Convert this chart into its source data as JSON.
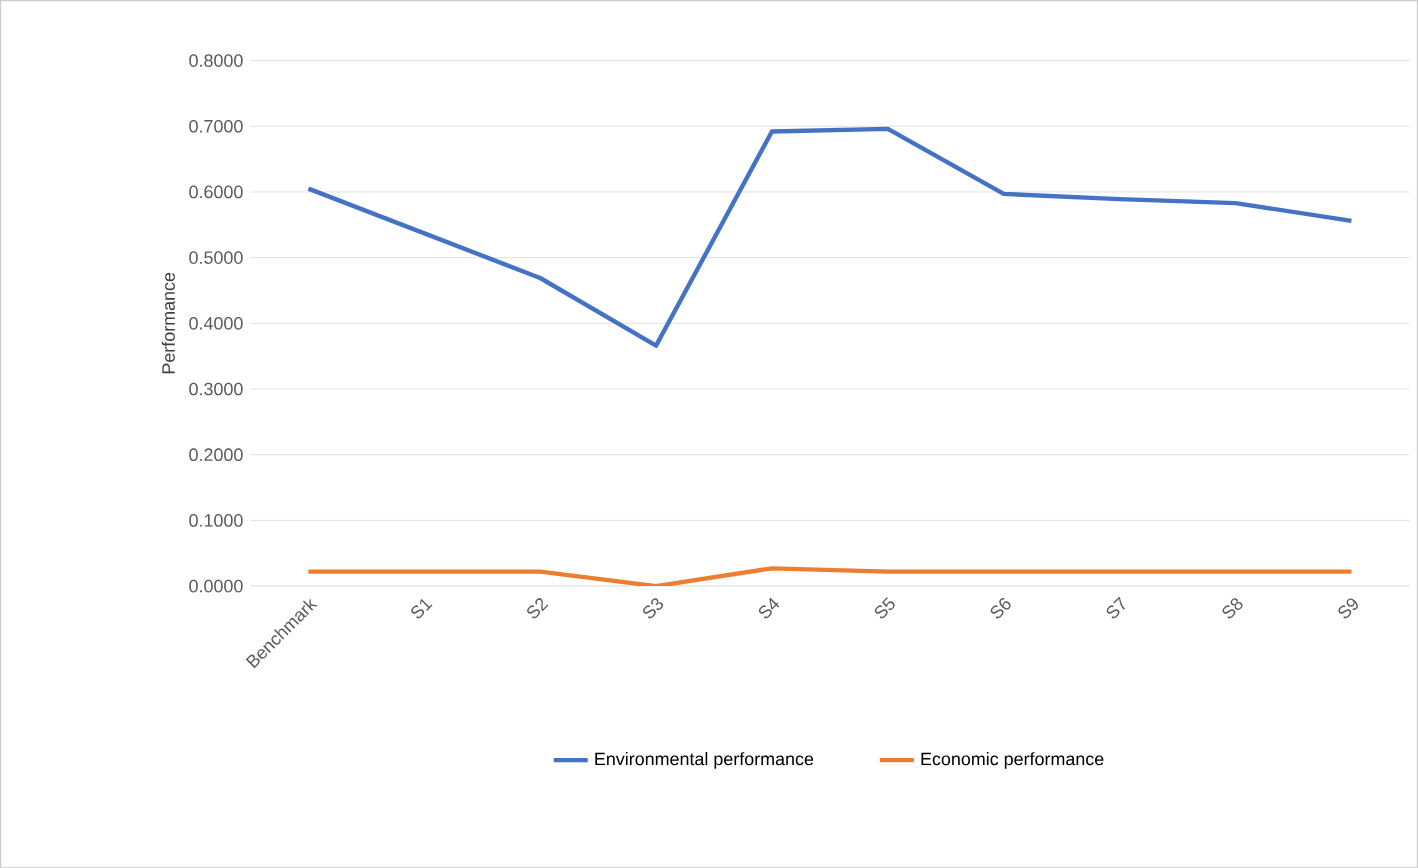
{
  "chart_data": {
    "type": "line",
    "ylabel": "Performance",
    "categories": [
      "Benchmark",
      "S1",
      "S2",
      "S3",
      "S4",
      "S5",
      "S6",
      "S7",
      "S8",
      "S9"
    ],
    "series": [
      {
        "name": "Environmental performance",
        "color": "#4472c4",
        "values": [
          0.605,
          0.537,
          0.469,
          0.366,
          0.692,
          0.696,
          0.597,
          0.589,
          0.583,
          0.556
        ]
      },
      {
        "name": "Economic performance",
        "color": "#ed7d31",
        "values": [
          0.022,
          0.022,
          0.022,
          0.0,
          0.027,
          0.022,
          0.022,
          0.022,
          0.022,
          0.022
        ]
      }
    ],
    "ylim": [
      0,
      0.8
    ],
    "yticks": [
      {
        "value": 0,
        "label": "0.0000"
      },
      {
        "value": 0.1,
        "label": "0.1000"
      },
      {
        "value": 0.2,
        "label": "0.2000"
      },
      {
        "value": 0.3,
        "label": "0.3000"
      },
      {
        "value": 0.4,
        "label": "0.4000"
      },
      {
        "value": 0.5,
        "label": "0.5000"
      },
      {
        "value": 0.6,
        "label": "0.6000"
      },
      {
        "value": 0.7,
        "label": "0.7000"
      },
      {
        "value": 0.8,
        "label": "0.8000"
      }
    ],
    "grid": "y",
    "legend": "bottom",
    "marker": "none",
    "line_style": "solid"
  }
}
